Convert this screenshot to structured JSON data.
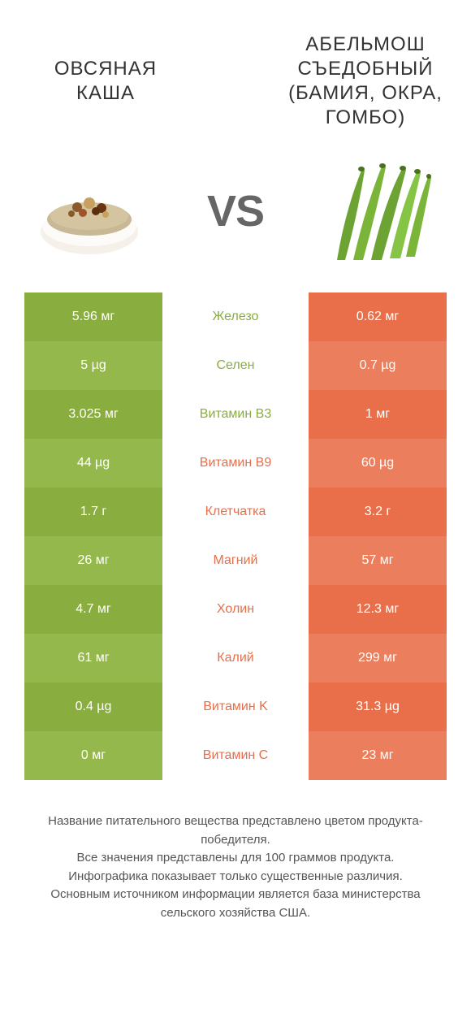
{
  "colors": {
    "left": "#8aad3f",
    "right": "#e86f4a",
    "left_alt": "#95b84c",
    "right_alt": "#eb7e5c",
    "mid_left_text": "#8aad3f",
    "mid_right_text": "#e86f4a"
  },
  "header": {
    "left_title": "ОВСЯНАЯ КАША",
    "right_title": "АБЕЛЬМОШ СЪЕДОБНЫЙ (БАМИЯ, ОКРА, ГОМБО)",
    "vs": "VS"
  },
  "rows": [
    {
      "left": "5.96 мг",
      "label": "Железо",
      "right": "0.62 мг",
      "winner": "left"
    },
    {
      "left": "5 µg",
      "label": "Селен",
      "right": "0.7 µg",
      "winner": "left"
    },
    {
      "left": "3.025 мг",
      "label": "Витамин B3",
      "right": "1 мг",
      "winner": "left"
    },
    {
      "left": "44 µg",
      "label": "Витамин B9",
      "right": "60 µg",
      "winner": "right"
    },
    {
      "left": "1.7 г",
      "label": "Клетчатка",
      "right": "3.2 г",
      "winner": "right"
    },
    {
      "left": "26 мг",
      "label": "Магний",
      "right": "57 мг",
      "winner": "right"
    },
    {
      "left": "4.7 мг",
      "label": "Холин",
      "right": "12.3 мг",
      "winner": "right"
    },
    {
      "left": "61 мг",
      "label": "Калий",
      "right": "299 мг",
      "winner": "right"
    },
    {
      "left": "0.4 µg",
      "label": "Витамин K",
      "right": "31.3 µg",
      "winner": "right"
    },
    {
      "left": "0 мг",
      "label": "Витамин C",
      "right": "23 мг",
      "winner": "right"
    }
  ],
  "footer": {
    "line1": "Название питательного вещества представлено цветом продукта-победителя.",
    "line2": "Все значения представлены для 100 граммов продукта.",
    "line3": "Инфографика показывает только существенные различия.",
    "line4": "Основным источником информации является база министерства сельского хозяйства США."
  }
}
